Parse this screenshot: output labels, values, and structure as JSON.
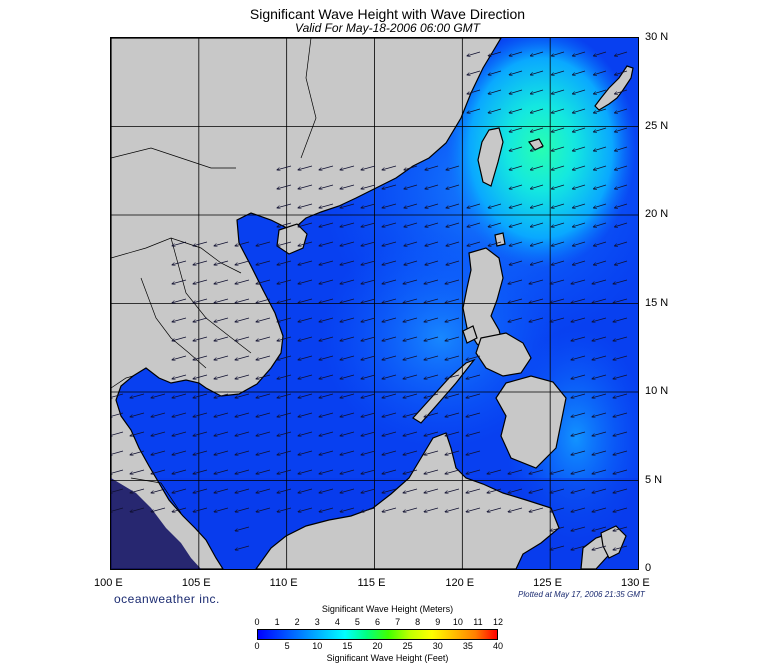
{
  "header": {
    "title": "Significant Wave Height with Wave Direction",
    "subtitle": "Valid For May-18-2006 06:00 GMT"
  },
  "map": {
    "lat_labels": [
      "30 N",
      "25 N",
      "20 N",
      "15 N",
      "10 N",
      "5 N",
      "0"
    ],
    "lon_labels": [
      "100 E",
      "105 E",
      "110 E",
      "115 E",
      "120 E",
      "125 E",
      "130 E"
    ],
    "lat_values": [
      30,
      25,
      20,
      15,
      10,
      5,
      0
    ],
    "lon_values": [
      100,
      105,
      110,
      115,
      120,
      125,
      130
    ],
    "extent": {
      "lon_min": 100,
      "lon_max": 130,
      "lat_min": 0,
      "lat_max": 30
    },
    "land_color": "#c8c8c8",
    "coast_color": "#000000",
    "grid_color": "#000000"
  },
  "footer": {
    "brand": "oceanweather inc.",
    "plotted": "Plotted at May 17, 2006 21:35 GMT"
  },
  "colorbar": {
    "meters_title": "Significant Wave Height (Meters)",
    "feet_title": "Significant Wave Height (Feet)",
    "meters_ticks": [
      "0",
      "1",
      "2",
      "3",
      "4",
      "5",
      "6",
      "7",
      "8",
      "9",
      "10",
      "11",
      "12"
    ],
    "feet_ticks": [
      "0",
      "5",
      "10",
      "15",
      "20",
      "25",
      "30",
      "35",
      "40"
    ],
    "colors": [
      "#0000ff",
      "#0040ff",
      "#0080ff",
      "#00c0ff",
      "#00ffff",
      "#00ff80",
      "#40ff00",
      "#c0ff00",
      "#ffff00",
      "#ffc000",
      "#ff8000",
      "#ff0000"
    ]
  }
}
